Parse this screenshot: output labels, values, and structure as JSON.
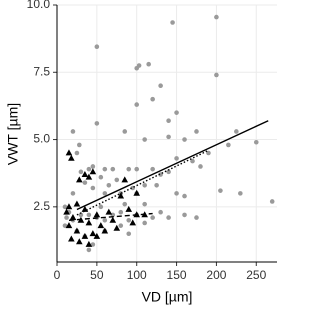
{
  "chart_data": {
    "type": "scatter",
    "x_label": "VD [µm]",
    "y_label": "VWT [µm]",
    "xlim": [
      0,
      276
    ],
    "ylim": [
      0.45,
      10
    ],
    "xticks": [
      0,
      50,
      100,
      150,
      200,
      250
    ],
    "yticks": [
      {
        "value": 2.5,
        "label": "2.5"
      },
      {
        "value": 5,
        "label": "5.0"
      },
      {
        "value": 7.5,
        "label": "7.5"
      },
      {
        "value": 10,
        "label": "10.0"
      }
    ],
    "grid": true,
    "series": [
      {
        "marker": "circle",
        "color": "#9a9a9a",
        "x": [
          50,
          200,
          145,
          100,
          103,
          115,
          130,
          200,
          100,
          120,
          150,
          140,
          50,
          20,
          85,
          175,
          225,
          140,
          160,
          110,
          250,
          215,
          190,
          170,
          180,
          150,
          130,
          140,
          120,
          100,
          90,
          70,
          60,
          40,
          30,
          25,
          28,
          45,
          55,
          75,
          110,
          125,
          150,
          160,
          205,
          230,
          270,
          100,
          80,
          60,
          45,
          35,
          20,
          10,
          15,
          20,
          30,
          40,
          50,
          60,
          70,
          80,
          90,
          100,
          120,
          140,
          160,
          175,
          10,
          25,
          35,
          45,
          40,
          60,
          80,
          90,
          110,
          130,
          95,
          65,
          85,
          55,
          110,
          12
        ],
        "y": [
          8.45,
          9.55,
          9.35,
          7.65,
          7.75,
          7.8,
          7.0,
          7.4,
          6.3,
          6.5,
          6.0,
          5.7,
          5.6,
          5.3,
          5.3,
          5.3,
          5.3,
          5.1,
          5.0,
          5.0,
          4.9,
          4.8,
          4.5,
          4.2,
          4.0,
          4.3,
          3.7,
          3.8,
          3.9,
          3.9,
          3.9,
          3.9,
          3.9,
          3.9,
          3.8,
          4.5,
          4.8,
          4.0,
          3.6,
          3.5,
          3.3,
          3.3,
          3.0,
          2.9,
          3.1,
          3.0,
          2.7,
          3.0,
          3.0,
          3.0,
          3.2,
          3.4,
          3.0,
          2.5,
          2.3,
          2.0,
          2.2,
          2.2,
          2.1,
          2.0,
          2.2,
          2.3,
          2.0,
          2.2,
          2.1,
          2.1,
          2.2,
          2.1,
          1.8,
          1.6,
          1.4,
          1.1,
          0.9,
          1.6,
          1.8,
          1.5,
          1.9,
          2.3,
          3.2,
          3.3,
          2.6,
          2.5,
          2.6,
          2.1
        ]
      },
      {
        "marker": "triangle",
        "color": "#000000",
        "x": [
          15,
          18,
          35,
          28,
          40,
          45,
          85,
          100,
          80,
          25,
          15,
          35,
          50,
          65,
          90,
          100,
          110,
          20,
          30,
          40,
          15,
          25,
          45,
          50,
          35,
          28,
          40,
          18,
          60,
          70,
          75,
          95,
          55,
          12
        ],
        "y": [
          4.5,
          4.3,
          3.7,
          3.5,
          3.6,
          3.8,
          3.5,
          3.0,
          2.9,
          2.6,
          2.5,
          2.4,
          2.2,
          2.3,
          2.4,
          2.2,
          2.2,
          2.1,
          2.0,
          1.9,
          1.8,
          1.6,
          1.5,
          1.4,
          1.4,
          1.2,
          1.1,
          1.3,
          1.6,
          2.0,
          1.7,
          1.9,
          1.8,
          2.3
        ]
      }
    ],
    "lines": [
      {
        "dash": "solid",
        "color": "#000000",
        "x": [
          25,
          265
        ],
        "y": [
          2.4,
          5.7
        ]
      },
      {
        "dash": "dotted",
        "color": "#000000",
        "x": [
          25,
          190
        ],
        "y": [
          2.2,
          4.6
        ]
      },
      {
        "dash": "dashed",
        "color": "#000000",
        "x": [
          15,
          120
        ],
        "y": [
          2.0,
          2.25
        ]
      }
    ]
  }
}
